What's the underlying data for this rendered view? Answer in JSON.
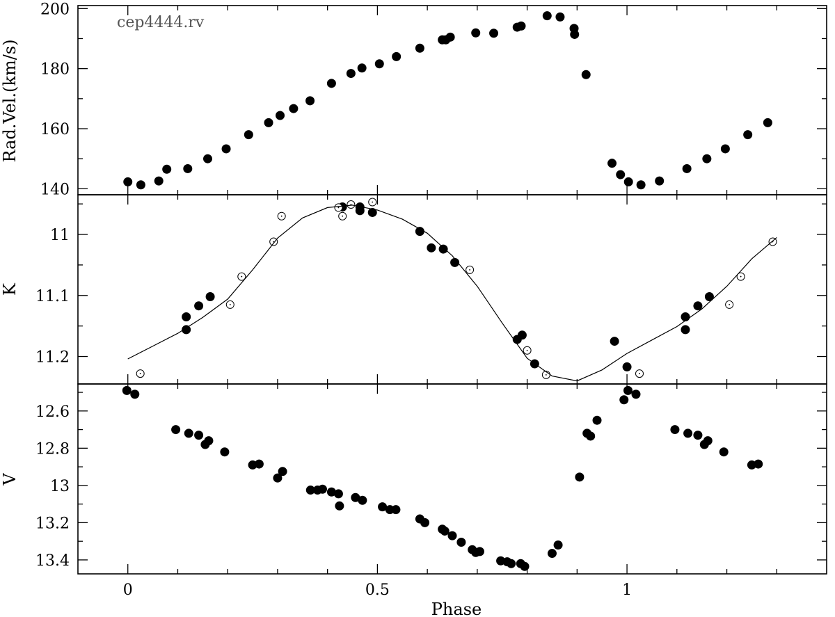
{
  "chart_data": [
    {
      "panel": "rv",
      "type": "scatter",
      "annotation": "cep4444.rv",
      "ylabel": "Rad.Vel.(km/s)",
      "xlabel": "",
      "xlim": [
        -0.1,
        1.4
      ],
      "ylim": [
        138,
        201
      ],
      "y_inverted": false,
      "yticks_major": [
        140,
        160,
        180,
        200
      ],
      "yticks_minor": [
        150,
        170,
        190
      ],
      "xticks_major": [
        0,
        0.5,
        1
      ],
      "grid": false,
      "series": [
        {
          "marker": "filled-circle",
          "points": [
            [
              0.0,
              142.3
            ],
            [
              0.026,
              141.3
            ],
            [
              0.062,
              142.6
            ],
            [
              0.078,
              146.5
            ],
            [
              0.12,
              146.7
            ],
            [
              0.16,
              150.0
            ],
            [
              0.197,
              153.3
            ],
            [
              0.242,
              158.0
            ],
            [
              0.282,
              162.0
            ],
            [
              0.305,
              164.4
            ],
            [
              0.332,
              166.7
            ],
            [
              0.365,
              169.3
            ],
            [
              0.408,
              175.1
            ],
            [
              0.447,
              178.4
            ],
            [
              0.469,
              180.2
            ],
            [
              0.504,
              181.6
            ],
            [
              0.538,
              184.0
            ],
            [
              0.585,
              186.8
            ],
            [
              0.63,
              189.6
            ],
            [
              0.637,
              189.6
            ],
            [
              0.646,
              190.5
            ],
            [
              0.697,
              191.9
            ],
            [
              0.733,
              191.8
            ],
            [
              0.78,
              193.8
            ],
            [
              0.788,
              194.2
            ],
            [
              0.84,
              197.6
            ],
            [
              0.866,
              197.2
            ],
            [
              0.894,
              193.4
            ],
            [
              0.895,
              191.4
            ],
            [
              0.918,
              178.0
            ],
            [
              0.97,
              148.5
            ],
            [
              0.987,
              144.7
            ],
            [
              1.003,
              142.3
            ],
            [
              1.028,
              141.3
            ],
            [
              1.065,
              142.6
            ],
            [
              1.12,
              146.7
            ],
            [
              1.16,
              150.0
            ],
            [
              1.197,
              153.3
            ],
            [
              1.242,
              158.0
            ],
            [
              1.282,
              162.0
            ]
          ]
        }
      ]
    },
    {
      "panel": "k",
      "type": "scatter",
      "ylabel": "K",
      "xlabel": "",
      "xlim": [
        -0.1,
        1.4
      ],
      "ylim": [
        11.245,
        10.935
      ],
      "y_inverted": true,
      "yticks_major": [
        11,
        11.1,
        11.2
      ],
      "yticks_labels": [
        "11",
        "11.1",
        "11.2"
      ],
      "yticks_minor": [
        10.95,
        11.05,
        11.15
      ],
      "xticks_major": [
        0,
        0.5,
        1
      ],
      "grid": false,
      "series": [
        {
          "marker": "filled-circle",
          "points": [
            [
              0.117,
              11.135
            ],
            [
              0.117,
              11.156
            ],
            [
              0.142,
              11.117
            ],
            [
              0.165,
              11.102
            ],
            [
              0.43,
              10.955
            ],
            [
              0.465,
              10.955
            ],
            [
              0.465,
              10.961
            ],
            [
              0.49,
              10.964
            ],
            [
              0.585,
              10.995
            ],
            [
              0.608,
              11.022
            ],
            [
              0.632,
              11.024
            ],
            [
              0.655,
              11.046
            ],
            [
              0.78,
              11.172
            ],
            [
              0.79,
              11.165
            ],
            [
              0.815,
              11.212
            ],
            [
              0.975,
              11.175
            ],
            [
              1.0,
              11.217
            ],
            [
              1.117,
              11.135
            ],
            [
              1.117,
              11.156
            ],
            [
              1.142,
              11.117
            ],
            [
              1.165,
              11.102
            ]
          ]
        },
        {
          "marker": "open-circle",
          "points": [
            [
              0.025,
              11.228
            ],
            [
              0.205,
              11.115
            ],
            [
              0.228,
              11.069
            ],
            [
              0.292,
              11.012
            ],
            [
              0.308,
              10.97
            ],
            [
              0.422,
              10.956
            ],
            [
              0.43,
              10.97
            ],
            [
              0.447,
              10.951
            ],
            [
              0.49,
              10.947
            ],
            [
              0.685,
              11.058
            ],
            [
              0.8,
              11.19
            ],
            [
              0.838,
              11.23
            ],
            [
              1.025,
              11.228
            ],
            [
              1.205,
              11.115
            ],
            [
              1.228,
              11.069
            ],
            [
              1.292,
              11.012
            ]
          ]
        },
        {
          "marker": "line",
          "name": "",
          "points": [
            [
              0.0,
              11.204
            ],
            [
              0.05,
              11.183
            ],
            [
              0.1,
              11.162
            ],
            [
              0.15,
              11.136
            ],
            [
              0.2,
              11.106
            ],
            [
              0.25,
              11.058
            ],
            [
              0.3,
              11.006
            ],
            [
              0.35,
              10.973
            ],
            [
              0.4,
              10.956
            ],
            [
              0.45,
              10.952
            ],
            [
              0.5,
              10.96
            ],
            [
              0.55,
              10.975
            ],
            [
              0.6,
              10.998
            ],
            [
              0.65,
              11.035
            ],
            [
              0.7,
              11.085
            ],
            [
              0.75,
              11.145
            ],
            [
              0.8,
              11.203
            ],
            [
              0.85,
              11.232
            ],
            [
              0.9,
              11.24
            ],
            [
              0.95,
              11.222
            ],
            [
              1.0,
              11.195
            ],
            [
              1.05,
              11.173
            ],
            [
              1.1,
              11.151
            ],
            [
              1.15,
              11.122
            ],
            [
              1.2,
              11.085
            ],
            [
              1.25,
              11.04
            ],
            [
              1.3,
              11.005
            ]
          ]
        }
      ]
    },
    {
      "panel": "v",
      "type": "scatter",
      "ylabel": "V",
      "xlabel": "Phase",
      "xlim": [
        -0.1,
        1.4
      ],
      "ylim": [
        13.475,
        12.455
      ],
      "y_inverted": true,
      "yticks_major": [
        12.6,
        12.8,
        13,
        13.2,
        13.4
      ],
      "yticks_labels": [
        "12.6",
        "12.8",
        "13",
        "13.2",
        "13.4"
      ],
      "yticks_minor": [
        12.5,
        12.7,
        12.9,
        13.1,
        13.3
      ],
      "xticks_major": [
        0,
        0.5,
        1
      ],
      "xticks_labels": [
        "0",
        "0.5",
        "1"
      ],
      "grid": false,
      "series": [
        {
          "marker": "filled-circle",
          "points": [
            [
              -0.002,
              12.49
            ],
            [
              0.014,
              12.51
            ],
            [
              0.096,
              12.7
            ],
            [
              0.122,
              12.72
            ],
            [
              0.142,
              12.73
            ],
            [
              0.155,
              12.78
            ],
            [
              0.162,
              12.76
            ],
            [
              0.194,
              12.82
            ],
            [
              0.25,
              12.89
            ],
            [
              0.263,
              12.885
            ],
            [
              0.3,
              12.96
            ],
            [
              0.31,
              12.925
            ],
            [
              0.366,
              13.025
            ],
            [
              0.38,
              13.025
            ],
            [
              0.39,
              13.02
            ],
            [
              0.408,
              13.035
            ],
            [
              0.422,
              13.045
            ],
            [
              0.424,
              13.11
            ],
            [
              0.456,
              13.065
            ],
            [
              0.47,
              13.08
            ],
            [
              0.51,
              13.115
            ],
            [
              0.525,
              13.13
            ],
            [
              0.537,
              13.13
            ],
            [
              0.585,
              13.18
            ],
            [
              0.595,
              13.2
            ],
            [
              0.63,
              13.235
            ],
            [
              0.635,
              13.245
            ],
            [
              0.65,
              13.27
            ],
            [
              0.668,
              13.305
            ],
            [
              0.69,
              13.345
            ],
            [
              0.697,
              13.36
            ],
            [
              0.705,
              13.355
            ],
            [
              0.747,
              13.405
            ],
            [
              0.76,
              13.41
            ],
            [
              0.768,
              13.42
            ],
            [
              0.787,
              13.42
            ],
            [
              0.795,
              13.435
            ],
            [
              0.85,
              13.365
            ],
            [
              0.862,
              13.32
            ],
            [
              0.905,
              12.955
            ],
            [
              0.92,
              12.72
            ],
            [
              0.927,
              12.735
            ],
            [
              0.94,
              12.65
            ],
            [
              0.994,
              12.54
            ],
            [
              1.002,
              12.49
            ],
            [
              1.018,
              12.51
            ],
            [
              1.096,
              12.7
            ],
            [
              1.122,
              12.72
            ],
            [
              1.142,
              12.73
            ],
            [
              1.155,
              12.78
            ],
            [
              1.162,
              12.76
            ],
            [
              1.194,
              12.82
            ],
            [
              1.25,
              12.89
            ],
            [
              1.263,
              12.885
            ]
          ]
        }
      ]
    }
  ]
}
